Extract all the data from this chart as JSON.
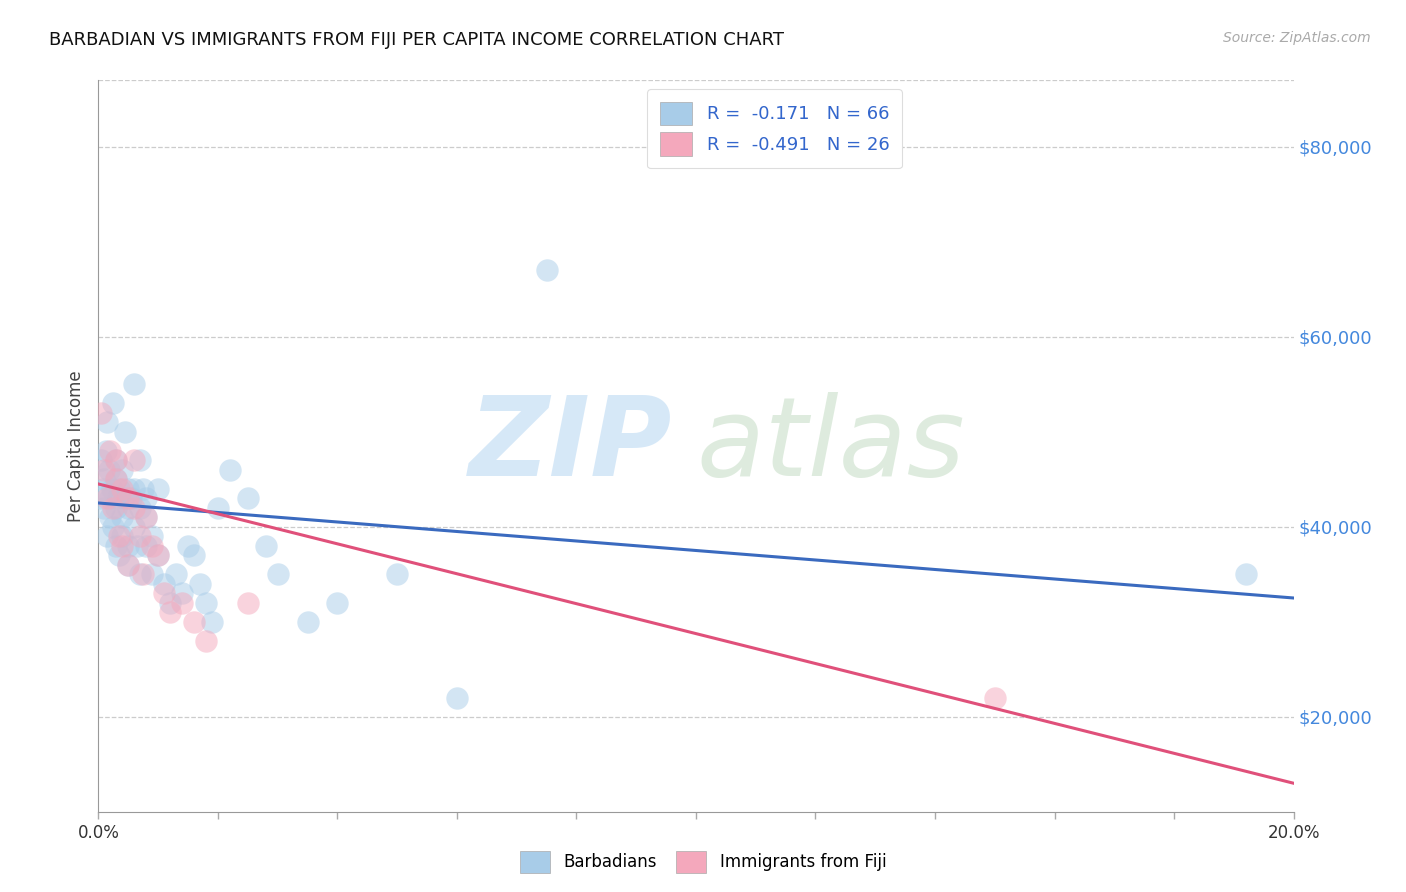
{
  "title": "BARBADIAN VS IMMIGRANTS FROM FIJI PER CAPITA INCOME CORRELATION CHART",
  "source": "Source: ZipAtlas.com",
  "ylabel": "Per Capita Income",
  "ytick_values": [
    80000,
    60000,
    40000,
    20000
  ],
  "xlim": [
    0.0,
    0.2
  ],
  "ylim": [
    10000,
    87000
  ],
  "legend_barbadian": "R =  -0.171   N = 66",
  "legend_fiji": "R =  -0.491   N = 26",
  "barbadian_color": "#a8cce8",
  "fiji_color": "#f4a8bc",
  "blue_line_color": "#3a6abf",
  "pink_line_color": "#e0507a",
  "barbadian_points_x": [
    0.0005,
    0.0005,
    0.0008,
    0.001,
    0.001,
    0.0012,
    0.0015,
    0.0015,
    0.0018,
    0.002,
    0.002,
    0.0022,
    0.0025,
    0.0025,
    0.003,
    0.003,
    0.003,
    0.003,
    0.0032,
    0.0035,
    0.0035,
    0.004,
    0.004,
    0.004,
    0.0042,
    0.0045,
    0.005,
    0.005,
    0.005,
    0.005,
    0.0055,
    0.006,
    0.006,
    0.006,
    0.0065,
    0.007,
    0.007,
    0.007,
    0.0075,
    0.008,
    0.008,
    0.008,
    0.009,
    0.009,
    0.01,
    0.01,
    0.011,
    0.012,
    0.013,
    0.014,
    0.015,
    0.016,
    0.017,
    0.018,
    0.019,
    0.02,
    0.022,
    0.025,
    0.028,
    0.03,
    0.035,
    0.04,
    0.05,
    0.06,
    0.075,
    0.192
  ],
  "barbadian_points_y": [
    43000,
    47000,
    44000,
    45000,
    42000,
    48000,
    51000,
    39000,
    46000,
    43000,
    41000,
    44000,
    53000,
    40000,
    47000,
    42000,
    38000,
    45000,
    43000,
    44000,
    37000,
    46000,
    41000,
    39000,
    43000,
    50000,
    44000,
    38000,
    42000,
    36000,
    43000,
    55000,
    44000,
    40000,
    38000,
    42000,
    47000,
    35000,
    44000,
    43000,
    38000,
    41000,
    35000,
    39000,
    44000,
    37000,
    34000,
    32000,
    35000,
    33000,
    38000,
    37000,
    34000,
    32000,
    30000,
    42000,
    46000,
    43000,
    38000,
    35000,
    30000,
    32000,
    35000,
    22000,
    67000,
    35000
  ],
  "fiji_points_x": [
    0.0005,
    0.001,
    0.0015,
    0.002,
    0.0025,
    0.003,
    0.003,
    0.0035,
    0.004,
    0.004,
    0.005,
    0.005,
    0.006,
    0.006,
    0.007,
    0.0075,
    0.008,
    0.009,
    0.01,
    0.011,
    0.012,
    0.014,
    0.016,
    0.018,
    0.025,
    0.15
  ],
  "fiji_points_y": [
    52000,
    46000,
    43000,
    48000,
    42000,
    47000,
    45000,
    39000,
    44000,
    38000,
    43000,
    36000,
    47000,
    42000,
    39000,
    35000,
    41000,
    38000,
    37000,
    33000,
    31000,
    32000,
    30000,
    28000,
    32000,
    22000
  ],
  "blue_line_x": [
    0.0,
    0.2
  ],
  "blue_line_y": [
    42500,
    32500
  ],
  "pink_line_x": [
    0.0,
    0.2
  ],
  "pink_line_y": [
    44500,
    13000
  ]
}
